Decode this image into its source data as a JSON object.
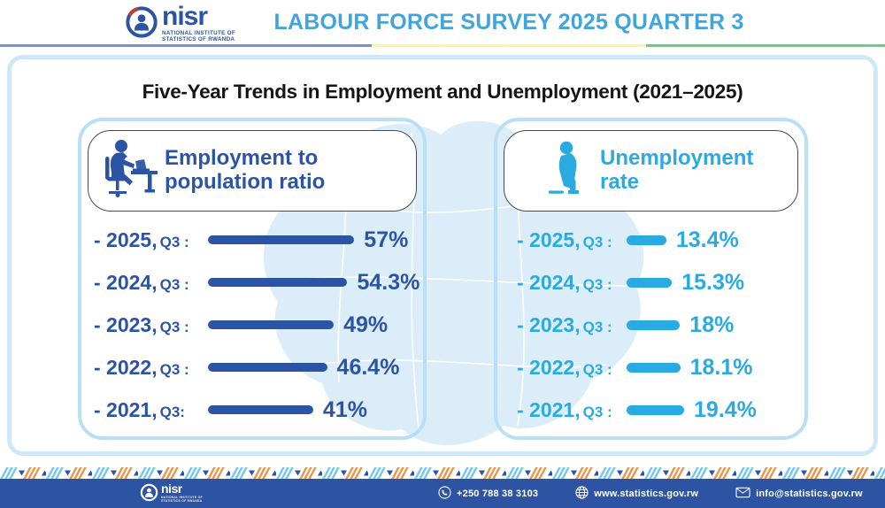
{
  "header": {
    "logo": {
      "brand": "nisr",
      "subtitle_line1": "NATIONAL INSTITUTE OF",
      "subtitle_line2": "STATISTICS OF RWANDA"
    },
    "title": "LABOUR FORCE SURVEY 2025 QUARTER 3"
  },
  "main_title": "Five-Year Trends in Employment and Unemployment (2021–2025)",
  "chart_data": [
    {
      "type": "bar",
      "orientation": "horizontal",
      "title": "Employment to population ratio",
      "categories": [
        "2025 Q3",
        "2024 Q3",
        "2023 Q3",
        "2022 Q3",
        "2021 Q3"
      ],
      "values": [
        57,
        54.3,
        49,
        46.4,
        41
      ],
      "data_labels": [
        "57%",
        "54.3%",
        "49%",
        "46.4%",
        "41%"
      ],
      "unit": "%",
      "bar_color": "#2B55A4",
      "legend_position": "none",
      "grid": false
    },
    {
      "type": "bar",
      "orientation": "horizontal",
      "title": "Unemployment rate",
      "categories": [
        "2025 Q3",
        "2024 Q3",
        "2023 Q3",
        "2022 Q3",
        "2021 Q3"
      ],
      "values": [
        13.4,
        15.3,
        18,
        18.1,
        19.4
      ],
      "data_labels": [
        "13.4%",
        "15.3%",
        "18%",
        "18.1%",
        "19.4%"
      ],
      "unit": "%",
      "bar_color": "#29ABE2",
      "legend_position": "none",
      "grid": false
    }
  ],
  "left_panel": {
    "icon": "person-working-at-desk",
    "title_line1": "Employment to",
    "title_line2": "population ratio",
    "rows": [
      {
        "prefix": "- 2025,",
        "q": "Q3 :",
        "value": "57%",
        "pct": 57
      },
      {
        "prefix": "- 2024,",
        "q": "Q3 :",
        "value": "54.3%",
        "pct": 54.3
      },
      {
        "prefix": "- 2023,",
        "q": "Q3 :",
        "value": "49%",
        "pct": 49
      },
      {
        "prefix": "- 2022,",
        "q": "Q3 :",
        "value": "46.4%",
        "pct": 46.4
      },
      {
        "prefix": "- 2021,",
        "q": "Q3:",
        "value": "41%",
        "pct": 41
      }
    ]
  },
  "right_panel": {
    "icon": "person-sitting-unemployed",
    "title_line1": "Unemployment",
    "title_line2": "rate",
    "rows": [
      {
        "prefix": "- 2025,",
        "q": "Q3 :",
        "value": "13.4%",
        "pct": 13.4
      },
      {
        "prefix": "- 2024,",
        "q": "Q3 :",
        "value": "15.3%",
        "pct": 15.3
      },
      {
        "prefix": "- 2023,",
        "q": "Q3 :",
        "value": "18%",
        "pct": 18
      },
      {
        "prefix": "- 2022,",
        "q": "Q3 :",
        "value": "18.1%",
        "pct": 18.1
      },
      {
        "prefix": "- 2021,",
        "q": "Q3 :",
        "value": "19.4%",
        "pct": 19.4
      }
    ]
  },
  "footer": {
    "brand": "nisr",
    "subtitle_line1": "NATIONAL INSTITUTE OF",
    "subtitle_line2": "STATISTICS OF RWANDA",
    "phone": "+250 788 38 3103",
    "website": "www.statistics.gov.rw",
    "email": "info@statistics.gov.rw"
  },
  "colors": {
    "header_title": "#41A5DC",
    "employment_blue": "#2B55A4",
    "unemployment_blue": "#29ABE2",
    "card_border": "#CFE8F8",
    "panel_border": "#B9DFF5",
    "map_fill": "#DBEDF9",
    "footer_bg": "#2D54A3",
    "pattern_orange": "#E8964F",
    "pattern_light_blue": "#74C6EC"
  }
}
